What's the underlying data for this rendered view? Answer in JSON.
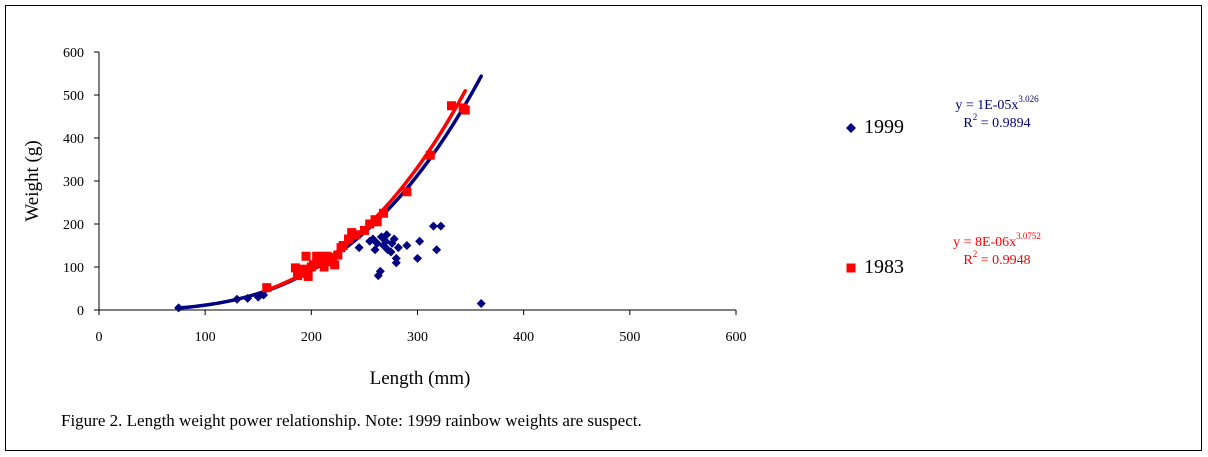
{
  "chart_data": {
    "type": "scatter",
    "title": "",
    "xlabel": "Length (mm)",
    "ylabel": "Weight (g)",
    "xlim": [
      0,
      600
    ],
    "ylim": [
      0,
      600
    ],
    "x_ticks": [
      "0",
      "100",
      "200",
      "300",
      "400",
      "500",
      "600"
    ],
    "y_ticks": [
      "0",
      "100",
      "200",
      "300",
      "400",
      "500",
      "600"
    ],
    "grid": false,
    "legend_position": "right",
    "series": [
      {
        "name": "1999",
        "color": "#000080",
        "marker": "diamond",
        "points": [
          [
            75,
            5
          ],
          [
            130,
            25
          ],
          [
            140,
            27
          ],
          [
            150,
            30
          ],
          [
            155,
            35
          ],
          [
            245,
            145
          ],
          [
            255,
            160
          ],
          [
            258,
            165
          ],
          [
            260,
            140
          ],
          [
            262,
            155
          ],
          [
            263,
            80
          ],
          [
            265,
            90
          ],
          [
            266,
            170
          ],
          [
            268,
            150
          ],
          [
            270,
            160
          ],
          [
            271,
            175
          ],
          [
            272,
            140
          ],
          [
            275,
            135
          ],
          [
            276,
            155
          ],
          [
            278,
            165
          ],
          [
            280,
            110
          ],
          [
            280,
            120
          ],
          [
            282,
            145
          ],
          [
            290,
            150
          ],
          [
            300,
            120
          ],
          [
            302,
            160
          ],
          [
            315,
            195
          ],
          [
            318,
            140
          ],
          [
            322,
            195
          ],
          [
            360,
            15
          ]
        ],
        "trendline": {
          "type": "power",
          "a": 1e-05,
          "b": 3.026,
          "x_range": [
            75,
            360
          ],
          "equation_prefix": "y = 1E-05x",
          "equation_exponent": "3.026",
          "r2_prefix": "R",
          "r2_exponent": "2",
          "r2_value": " = 0.9894"
        }
      },
      {
        "name": "1983",
        "color": "#ff0000",
        "marker": "square",
        "points": [
          [
            158,
            52
          ],
          [
            185,
            98
          ],
          [
            187,
            80
          ],
          [
            190,
            85
          ],
          [
            193,
            95
          ],
          [
            195,
            125
          ],
          [
            197,
            78
          ],
          [
            200,
            100
          ],
          [
            202,
            105
          ],
          [
            205,
            125
          ],
          [
            207,
            110
          ],
          [
            210,
            125
          ],
          [
            212,
            100
          ],
          [
            215,
            125
          ],
          [
            218,
            120
          ],
          [
            220,
            112
          ],
          [
            222,
            105
          ],
          [
            225,
            128
          ],
          [
            228,
            145
          ],
          [
            230,
            150
          ],
          [
            235,
            165
          ],
          [
            238,
            180
          ],
          [
            242,
            175
          ],
          [
            250,
            185
          ],
          [
            255,
            200
          ],
          [
            260,
            210
          ],
          [
            262,
            205
          ],
          [
            268,
            225
          ],
          [
            290,
            275
          ],
          [
            312,
            360
          ],
          [
            332,
            475
          ],
          [
            343,
            470
          ],
          [
            345,
            465
          ]
        ],
        "trendline": {
          "type": "power",
          "a": 8e-06,
          "b": 3.0752,
          "x_range": [
            155,
            345
          ],
          "equation_prefix": "y = 8E-06x",
          "equation_exponent": "3.0752",
          "r2_prefix": "R",
          "r2_exponent": "2",
          "r2_value": " = 0.9948"
        }
      }
    ]
  },
  "caption": "Figure 2. Length weight power relationship.  Note: 1999 rainbow weights are suspect."
}
